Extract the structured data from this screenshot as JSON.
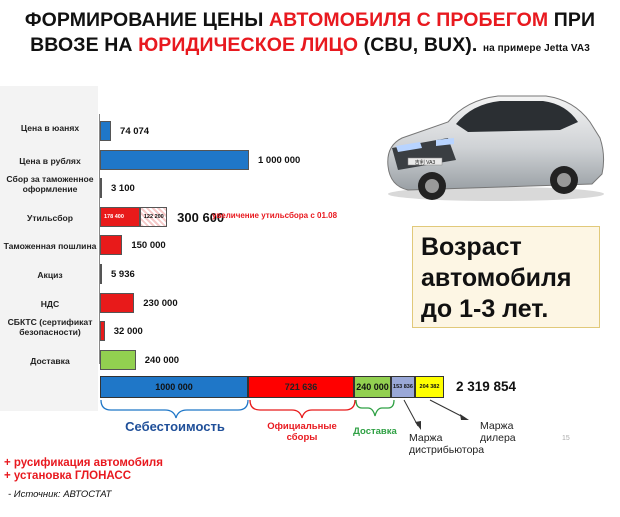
{
  "title": {
    "line1_a": "ФОРМИРОВАНИЕ ЦЕНЫ ",
    "line1_b": "АВТОМОБИЛЯ С ПРОБЕГОМ",
    "line1_c": " ПРИ",
    "line2_a": "ВВОЗЕ НА ",
    "line2_b": "ЮРИДИЧЕСКОЕ ЛИЦО",
    "line2_c": " (CBU, BUX).",
    "line2_small": "на примере Jetta VA3"
  },
  "chart_data": {
    "type": "bar",
    "orientation": "horizontal",
    "max_value": 1000000,
    "categories": [
      "Цена в юанях",
      "Цена в рублях",
      "Сбор за таможенное оформление",
      "Утильсбор",
      "Таможенная пошлина",
      "Акциз",
      "НДС",
      "СБКТС (сертификат безопасности)",
      "Доставка"
    ],
    "values": [
      74074,
      1000000,
      3100,
      300600,
      150000,
      5936,
      230000,
      32000,
      240000
    ],
    "value_labels": [
      "74 074",
      "1 000 000",
      "3 100",
      "300 600",
      "150 000",
      "5 936",
      "230 000",
      "32 000",
      "240 000"
    ],
    "colors": [
      "#1f77c8",
      "#1f77c8",
      "#1f77c8",
      "#e81a1a",
      "#e81a1a",
      "#e81a1a",
      "#e81a1a",
      "#e81a1a",
      "#92d050"
    ],
    "util_split": {
      "parts": [
        178400,
        122200
      ],
      "part_labels": [
        "178 400",
        "122 200"
      ],
      "note": "увеличение утильсбора с 01.08"
    },
    "stacked_total": {
      "segments": [
        {
          "value": 1000000,
          "label": "1000 000",
          "color": "#1f77c8"
        },
        {
          "value": 721636,
          "label": "721 636",
          "color": "#ff0000"
        },
        {
          "value": 240000,
          "label": "240 000",
          "color": "#92d050"
        },
        {
          "value": 153836,
          "label": "153 836",
          "color": "#9aa8d8"
        },
        {
          "value": 204382,
          "label": "204 382",
          "color": "#ffff00"
        }
      ],
      "total_label": "2 319 854"
    }
  },
  "braces": {
    "cost": "Себестоимость",
    "fees": "Официальные сборы",
    "delivery": "Доставка",
    "dist_margin": "Маржа дистрибьютора",
    "dealer_margin": "Маржа дилера"
  },
  "age_box": "Возраст автомобиля до 1-3 лет.",
  "car_plate": "吉利 VA3",
  "notes": [
    "+ русификация автомобиля",
    "+ установка ГЛОНАСС"
  ],
  "source": "- Источник: АВТОСТАТ",
  "page_number": "15"
}
